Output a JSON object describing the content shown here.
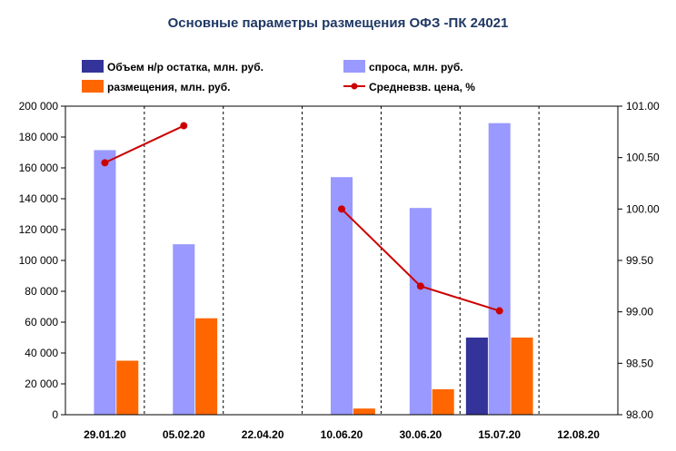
{
  "chart_data": {
    "type": "bar",
    "title": "Основные параметры размещения ОФЗ -ПК 24021",
    "categories": [
      "29.01.20",
      "05.02.20",
      "22.04.20",
      "10.06.20",
      "30.06.20",
      "15.07.20",
      "12.08.20"
    ],
    "series": [
      {
        "name": "Объем н/р остатка, млн. руб.",
        "type": "bar",
        "axis": "left",
        "color": "#333399",
        "values": [
          null,
          null,
          null,
          null,
          null,
          50000,
          null
        ]
      },
      {
        "name": "спроса, млн. руб.",
        "type": "bar",
        "axis": "left",
        "color": "#9999ff",
        "values": [
          171500,
          110500,
          null,
          154000,
          134000,
          189000,
          null
        ]
      },
      {
        "name": "размещения, млн. руб.",
        "type": "bar",
        "axis": "left",
        "color": "#ff6600",
        "values": [
          35000,
          62500,
          null,
          4000,
          16500,
          50000,
          null
        ]
      },
      {
        "name": "Средневзв. цена, %",
        "type": "line",
        "axis": "right",
        "color": "#cc0000",
        "values": [
          100.45,
          100.81,
          null,
          100.0,
          99.25,
          99.01,
          null
        ]
      }
    ],
    "ylim_left": [
      0,
      200000
    ],
    "yticks_left": [
      "0",
      "20 000",
      "40 000",
      "60 000",
      "80 000",
      "100 000",
      "120 000",
      "140 000",
      "160 000",
      "180 000",
      "200 000"
    ],
    "ylim_right": [
      98.0,
      101.0
    ],
    "yticks_right": [
      "98.00",
      "98.50",
      "99.00",
      "99.50",
      "100.00",
      "100.50",
      "101.00"
    ],
    "grid": "vertical dashed",
    "legend_position": "top"
  }
}
